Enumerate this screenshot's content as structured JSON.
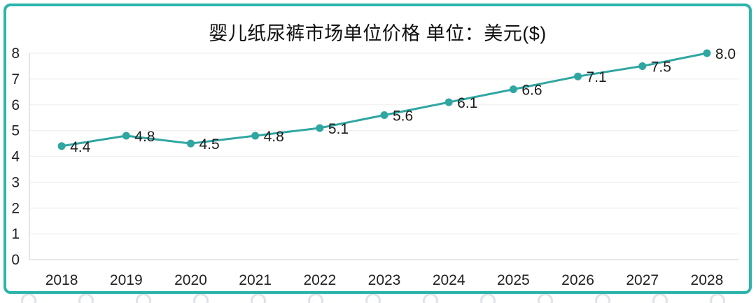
{
  "chart_data": {
    "type": "line",
    "title": "婴儿纸尿裤市场单位价格 单位：美元($)",
    "categories": [
      "2018",
      "2019",
      "2020",
      "2021",
      "2022",
      "2023",
      "2024",
      "2025",
      "2026",
      "2027",
      "2028"
    ],
    "values": [
      4.4,
      4.8,
      4.5,
      4.8,
      5.1,
      5.6,
      6.1,
      6.6,
      7.1,
      7.5,
      8.0
    ],
    "data_labels": [
      "4.4",
      "4.8",
      "4.5",
      "4.8",
      "5.1",
      "5.6",
      "6.1",
      "6.6",
      "7.1",
      "7.5",
      "8.0"
    ],
    "xlabel": "",
    "ylabel": "",
    "ylim": [
      0,
      8
    ],
    "yticks": [
      "0",
      "1",
      "2",
      "3",
      "4",
      "5",
      "6",
      "7",
      "8"
    ],
    "grid": true,
    "legend": false,
    "line_color": "#2fa6a1",
    "marker_color": "#2fa6a1",
    "label_color": "#1c1c1c",
    "axis_text_color": "#222222",
    "gridline_color": "#f0f0f0",
    "axis_line_color": "#d9d9d9",
    "card_border_color": "#2db4ab"
  }
}
